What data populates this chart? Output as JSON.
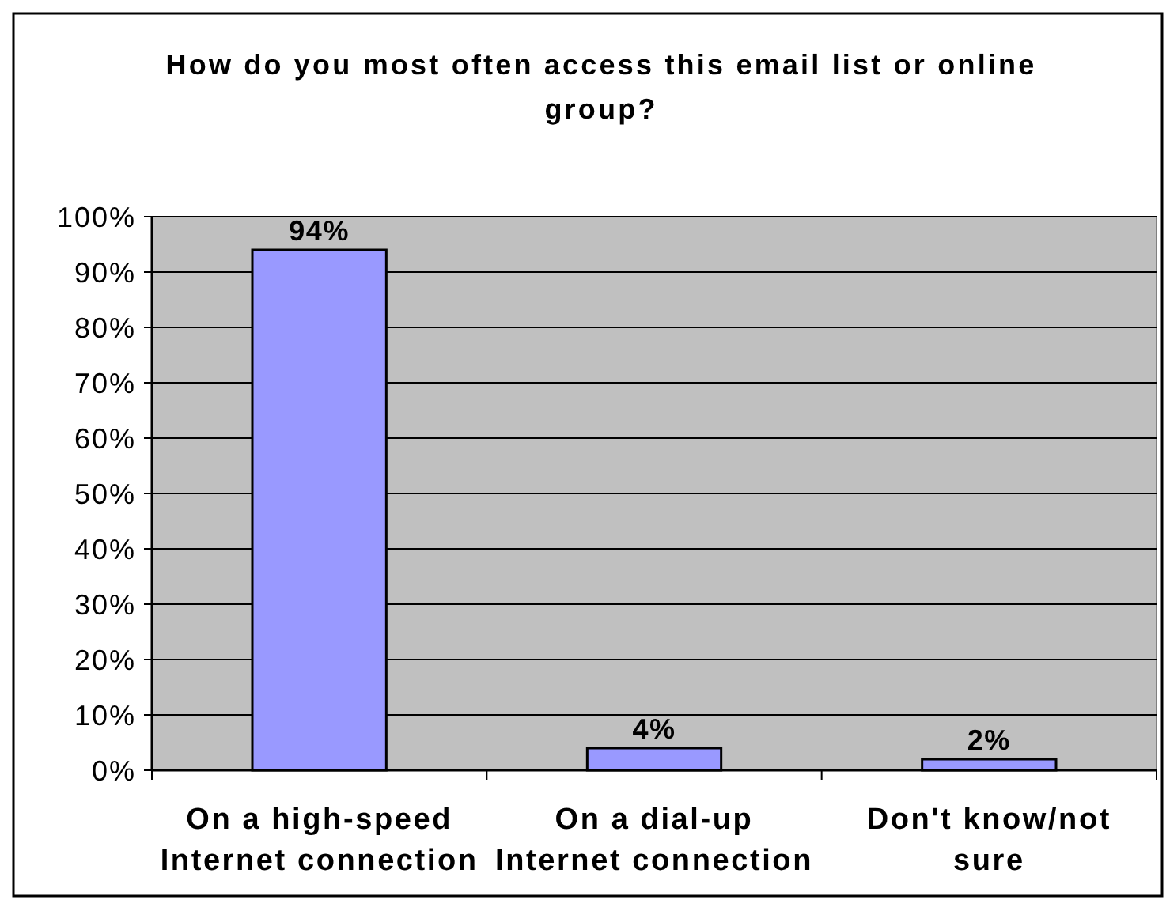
{
  "chart_data": {
    "type": "bar",
    "title": "How do you most often access this email list or online group?",
    "categories": [
      "On a high-speed Internet connection",
      "On a dial-up Internet connection",
      "Don't know/not sure"
    ],
    "values": [
      94,
      4,
      2
    ],
    "value_labels": [
      "94%",
      "4%",
      "2%"
    ],
    "color": "#9999ff",
    "ylim": [
      0,
      100
    ],
    "yticks": [
      {
        "value": 0,
        "label": "0%"
      },
      {
        "value": 10,
        "label": "10%"
      },
      {
        "value": 20,
        "label": "20%"
      },
      {
        "value": 30,
        "label": "30%"
      },
      {
        "value": 40,
        "label": "40%"
      },
      {
        "value": 50,
        "label": "50%"
      },
      {
        "value": 60,
        "label": "60%"
      },
      {
        "value": 70,
        "label": "70%"
      },
      {
        "value": 80,
        "label": "80%"
      },
      {
        "value": 90,
        "label": "90%"
      },
      {
        "value": 100,
        "label": "100%"
      }
    ],
    "grid": "y"
  }
}
